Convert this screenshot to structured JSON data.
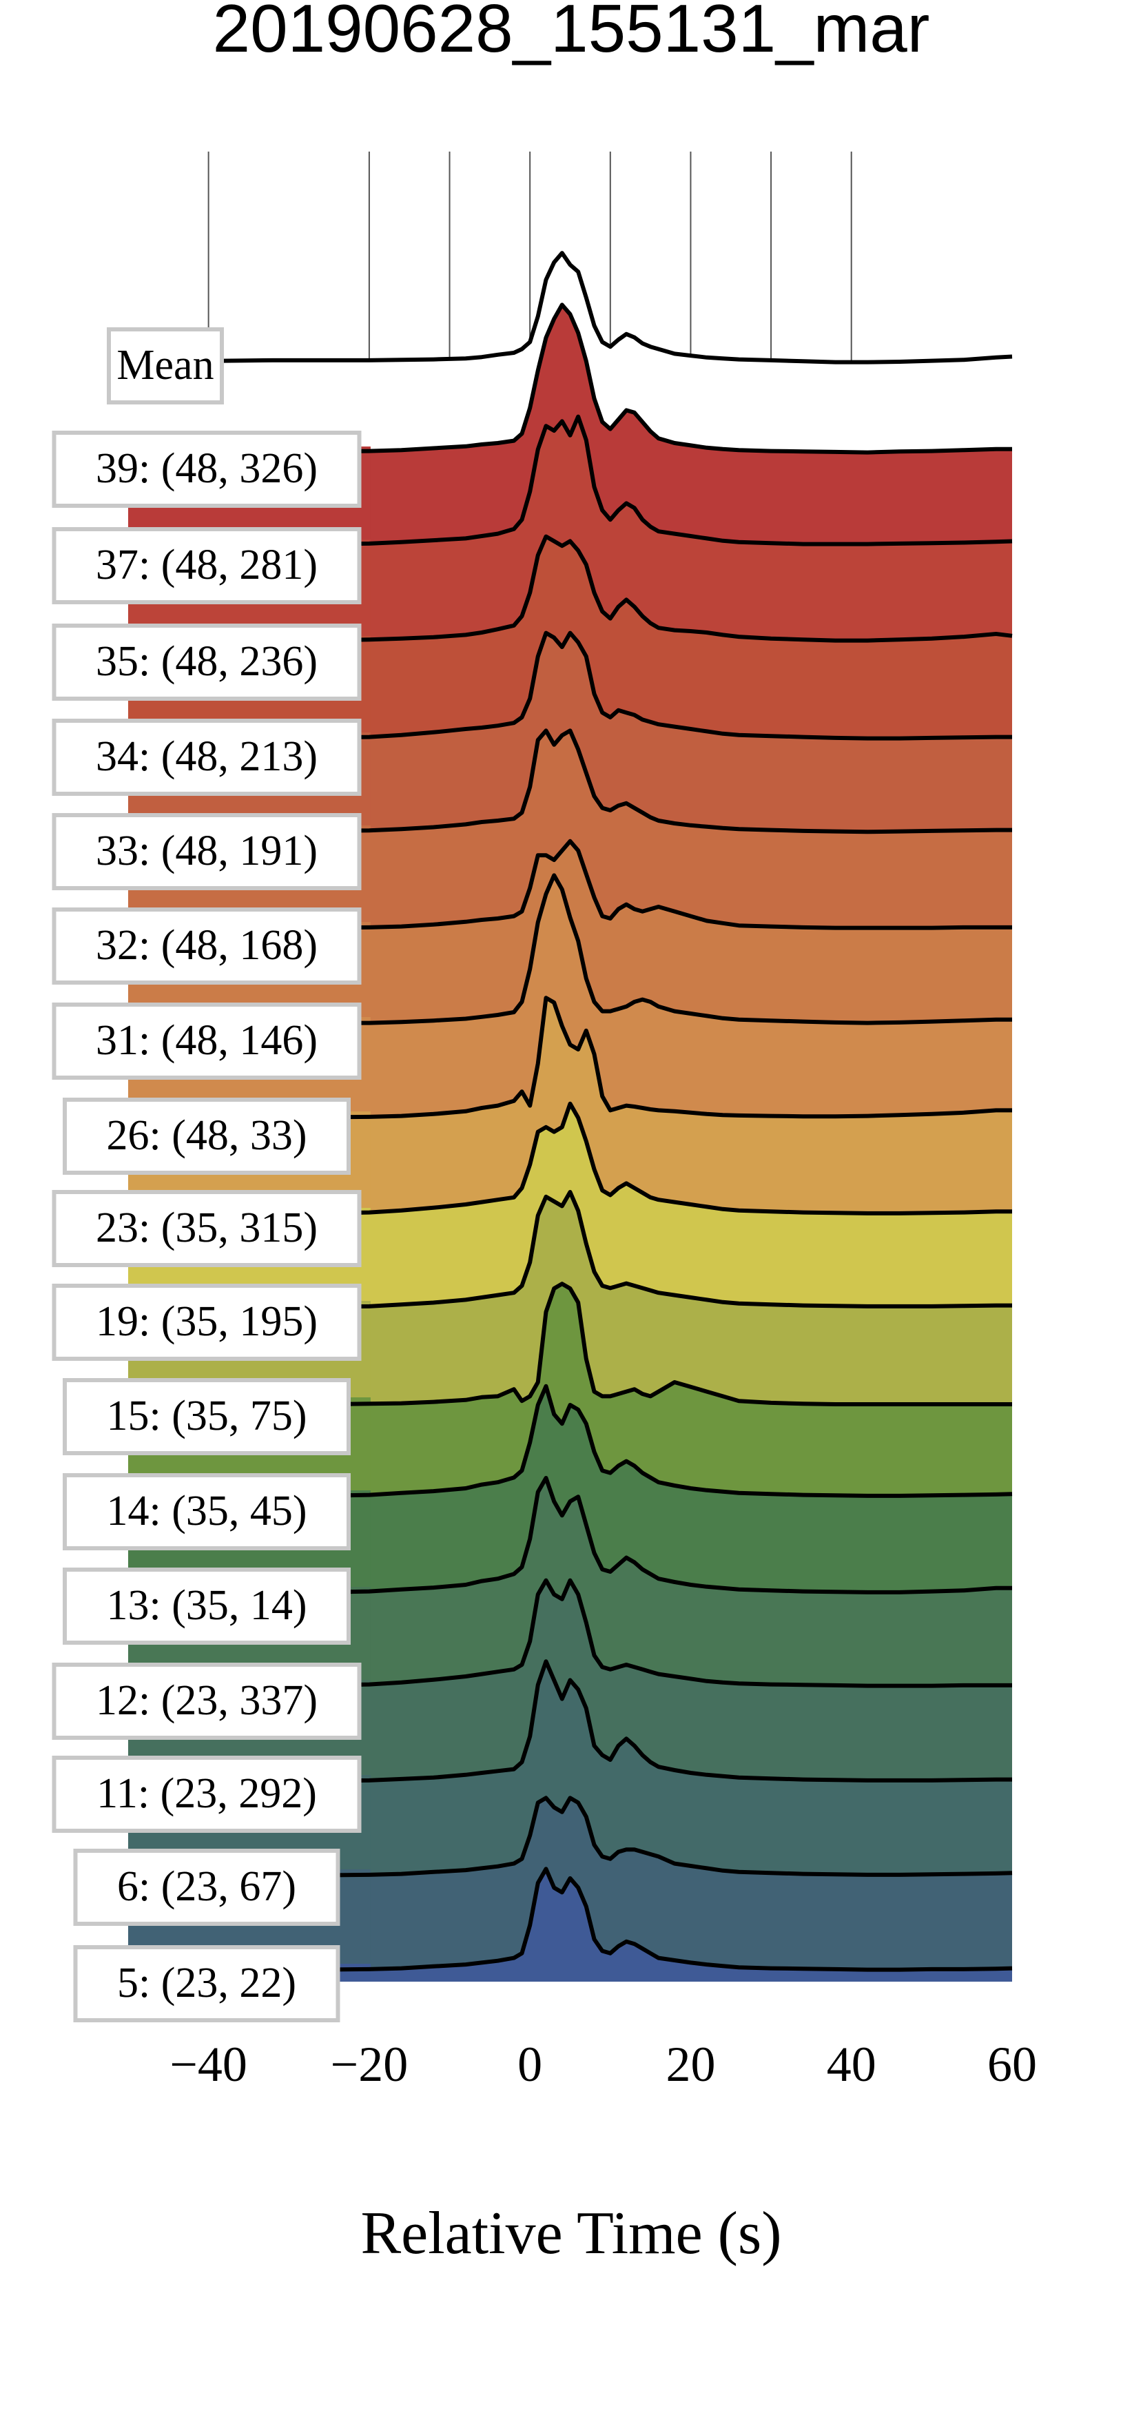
{
  "chart_data": {
    "type": "ridgeline",
    "title": "20190628_155131_mar",
    "xlabel": "Relative Time (s)",
    "ylabel": "",
    "xlim": [
      -50,
      60
    ],
    "x_ticks": [
      -40,
      -20,
      0,
      20,
      40,
      60
    ],
    "x_tick_labels": [
      "−40",
      "−20",
      "0",
      "20",
      "40",
      "60"
    ],
    "vertical_gridlines": [
      -40,
      -20,
      -10,
      0,
      10,
      20,
      30,
      40
    ],
    "grid": true,
    "x": [
      -50,
      -44,
      -38,
      -32,
      -26,
      -20,
      -16,
      -12,
      -8,
      -6,
      -4,
      -2,
      -1,
      0,
      1,
      2,
      3,
      4,
      5,
      6,
      7,
      8,
      9,
      10,
      11,
      12,
      13,
      14,
      15,
      16,
      18,
      20,
      22,
      24,
      26,
      30,
      34,
      38,
      42,
      46,
      50,
      54,
      58,
      60
    ],
    "mean": {
      "label": "Mean",
      "values": [
        0.05,
        0.05,
        0.05,
        0.06,
        0.06,
        0.06,
        0.07,
        0.08,
        0.1,
        0.13,
        0.18,
        0.22,
        0.3,
        0.45,
        1.0,
        1.78,
        2.15,
        2.35,
        2.1,
        1.95,
        1.4,
        0.8,
        0.45,
        0.35,
        0.5,
        0.62,
        0.55,
        0.42,
        0.35,
        0.3,
        0.2,
        0.16,
        0.12,
        0.1,
        0.08,
        0.06,
        0.04,
        0.02,
        0.02,
        0.03,
        0.05,
        0.07,
        0.12,
        0.14
      ]
    },
    "series": [
      {
        "name": "39: (48, 326)",
        "color": "#b93b39",
        "values": [
          0.05,
          0.05,
          0.06,
          0.06,
          0.07,
          0.08,
          0.1,
          0.14,
          0.18,
          0.22,
          0.25,
          0.3,
          0.45,
          1.0,
          1.8,
          2.5,
          2.9,
          3.2,
          3.0,
          2.6,
          2.0,
          1.2,
          0.7,
          0.55,
          0.75,
          0.95,
          0.9,
          0.7,
          0.5,
          0.35,
          0.25,
          0.2,
          0.15,
          0.12,
          0.1,
          0.08,
          0.07,
          0.06,
          0.05,
          0.07,
          0.08,
          0.1,
          0.12,
          0.12
        ]
      },
      {
        "name": "37: (48, 281)",
        "color": "#bc4439",
        "values": [
          0.05,
          0.05,
          0.06,
          0.06,
          0.08,
          0.09,
          0.12,
          0.16,
          0.2,
          0.25,
          0.3,
          0.4,
          0.6,
          1.2,
          2.1,
          2.6,
          2.5,
          2.7,
          2.4,
          2.8,
          2.3,
          1.3,
          0.8,
          0.6,
          0.8,
          0.95,
          0.85,
          0.6,
          0.45,
          0.35,
          0.3,
          0.25,
          0.2,
          0.15,
          0.12,
          0.1,
          0.08,
          0.08,
          0.08,
          0.09,
          0.1,
          0.11,
          0.13,
          0.14
        ]
      },
      {
        "name": "35: (48, 236)",
        "color": "#be5039",
        "values": [
          0.05,
          0.05,
          0.06,
          0.06,
          0.08,
          0.1,
          0.12,
          0.15,
          0.2,
          0.25,
          0.32,
          0.4,
          0.6,
          1.1,
          1.9,
          2.3,
          2.2,
          2.1,
          2.2,
          2.0,
          1.7,
          1.1,
          0.7,
          0.55,
          0.8,
          0.95,
          0.8,
          0.6,
          0.45,
          0.35,
          0.3,
          0.28,
          0.25,
          0.2,
          0.16,
          0.12,
          0.1,
          0.08,
          0.08,
          0.1,
          0.12,
          0.16,
          0.22,
          0.18
        ]
      },
      {
        "name": "34: (48, 213)",
        "color": "#c15f40",
        "values": [
          0.04,
          0.05,
          0.05,
          0.06,
          0.07,
          0.08,
          0.12,
          0.18,
          0.25,
          0.28,
          0.32,
          0.38,
          0.5,
          0.9,
          1.8,
          2.3,
          2.2,
          2.0,
          2.3,
          2.1,
          1.8,
          1.0,
          0.6,
          0.5,
          0.65,
          0.6,
          0.55,
          0.45,
          0.4,
          0.35,
          0.3,
          0.25,
          0.2,
          0.15,
          0.12,
          0.1,
          0.08,
          0.06,
          0.05,
          0.05,
          0.06,
          0.07,
          0.08,
          0.08
        ]
      },
      {
        "name": "33: (48, 191)",
        "color": "#c66d44",
        "values": [
          0.04,
          0.04,
          0.05,
          0.05,
          0.06,
          0.07,
          0.1,
          0.14,
          0.2,
          0.25,
          0.28,
          0.32,
          0.45,
          1.0,
          2.0,
          2.2,
          1.9,
          2.1,
          2.2,
          1.8,
          1.3,
          0.8,
          0.55,
          0.5,
          0.6,
          0.65,
          0.55,
          0.45,
          0.35,
          0.28,
          0.22,
          0.18,
          0.15,
          0.12,
          0.1,
          0.08,
          0.06,
          0.05,
          0.04,
          0.05,
          0.06,
          0.07,
          0.08,
          0.08
        ]
      },
      {
        "name": "32: (48, 168)",
        "color": "#cb7c48",
        "values": [
          0.04,
          0.04,
          0.04,
          0.05,
          0.05,
          0.06,
          0.08,
          0.12,
          0.18,
          0.22,
          0.25,
          0.3,
          0.4,
          0.9,
          1.6,
          1.6,
          1.5,
          1.7,
          1.9,
          1.7,
          1.2,
          0.7,
          0.3,
          0.25,
          0.45,
          0.55,
          0.45,
          0.4,
          0.45,
          0.5,
          0.4,
          0.3,
          0.2,
          0.15,
          0.1,
          0.08,
          0.06,
          0.05,
          0.05,
          0.05,
          0.05,
          0.06,
          0.06,
          0.06
        ]
      },
      {
        "name": "31: (48, 146)",
        "color": "#d08a4d",
        "values": [
          0.04,
          0.04,
          0.04,
          0.05,
          0.05,
          0.05,
          0.07,
          0.1,
          0.14,
          0.18,
          0.22,
          0.28,
          0.5,
          1.2,
          2.2,
          2.8,
          3.2,
          2.9,
          2.3,
          1.8,
          1.0,
          0.5,
          0.3,
          0.3,
          0.35,
          0.4,
          0.5,
          0.55,
          0.5,
          0.4,
          0.3,
          0.25,
          0.2,
          0.15,
          0.12,
          0.1,
          0.08,
          0.06,
          0.05,
          0.06,
          0.08,
          0.1,
          0.12,
          0.12
        ]
      },
      {
        "name": "26: (48, 33)",
        "color": "#d4a04f",
        "values": [
          0.03,
          0.03,
          0.04,
          0.04,
          0.05,
          0.06,
          0.08,
          0.12,
          0.18,
          0.25,
          0.3,
          0.4,
          0.6,
          0.3,
          1.2,
          2.6,
          2.5,
          2.0,
          1.6,
          1.5,
          1.9,
          1.4,
          0.5,
          0.2,
          0.25,
          0.3,
          0.28,
          0.25,
          0.22,
          0.2,
          0.18,
          0.15,
          0.12,
          0.1,
          0.09,
          0.08,
          0.07,
          0.07,
          0.08,
          0.1,
          0.12,
          0.15,
          0.2,
          0.2
        ]
      },
      {
        "name": "23: (35, 315)",
        "color": "#d0c64e",
        "values": [
          0.04,
          0.04,
          0.05,
          0.05,
          0.06,
          0.08,
          0.12,
          0.18,
          0.25,
          0.3,
          0.35,
          0.4,
          0.6,
          1.1,
          1.8,
          1.9,
          1.8,
          1.9,
          2.4,
          2.1,
          1.6,
          1.0,
          0.55,
          0.45,
          0.6,
          0.7,
          0.6,
          0.5,
          0.4,
          0.35,
          0.3,
          0.25,
          0.2,
          0.15,
          0.12,
          0.1,
          0.08,
          0.07,
          0.06,
          0.06,
          0.07,
          0.08,
          0.1,
          0.1
        ]
      },
      {
        "name": "19: (35, 195)",
        "color": "#acb049",
        "values": [
          0.04,
          0.04,
          0.04,
          0.05,
          0.05,
          0.06,
          0.1,
          0.14,
          0.2,
          0.25,
          0.3,
          0.35,
          0.5,
          1.0,
          2.0,
          2.4,
          2.3,
          2.2,
          2.5,
          2.1,
          1.4,
          0.8,
          0.5,
          0.45,
          0.5,
          0.55,
          0.5,
          0.45,
          0.4,
          0.35,
          0.3,
          0.25,
          0.2,
          0.15,
          0.12,
          0.1,
          0.08,
          0.07,
          0.06,
          0.06,
          0.06,
          0.07,
          0.08,
          0.08
        ]
      },
      {
        "name": "15: (35, 75)",
        "color": "#6e963f",
        "values": [
          0.02,
          0.02,
          0.02,
          0.03,
          0.03,
          0.04,
          0.05,
          0.08,
          0.12,
          0.18,
          0.2,
          0.35,
          0.1,
          0.2,
          0.5,
          2.0,
          2.5,
          2.6,
          2.5,
          2.2,
          1.0,
          0.3,
          0.2,
          0.2,
          0.25,
          0.3,
          0.35,
          0.25,
          0.2,
          0.3,
          0.5,
          0.4,
          0.3,
          0.2,
          0.1,
          0.06,
          0.04,
          0.03,
          0.03,
          0.03,
          0.03,
          0.03,
          0.03,
          0.03
        ]
      },
      {
        "name": "14: (35, 45)",
        "color": "#4b7e4b",
        "values": [
          0.04,
          0.04,
          0.05,
          0.05,
          0.06,
          0.08,
          0.12,
          0.16,
          0.22,
          0.3,
          0.35,
          0.45,
          0.6,
          1.2,
          2.0,
          2.4,
          1.8,
          1.6,
          2.0,
          1.9,
          1.6,
          1.0,
          0.6,
          0.55,
          0.7,
          0.8,
          0.7,
          0.55,
          0.45,
          0.35,
          0.28,
          0.22,
          0.18,
          0.15,
          0.12,
          0.1,
          0.08,
          0.07,
          0.06,
          0.06,
          0.07,
          0.08,
          0.09,
          0.1
        ]
      },
      {
        "name": "13: (35, 14)",
        "color": "#497755",
        "values": [
          0.04,
          0.04,
          0.05,
          0.05,
          0.06,
          0.08,
          0.12,
          0.16,
          0.22,
          0.3,
          0.35,
          0.45,
          0.6,
          1.2,
          2.2,
          2.5,
          2.0,
          1.7,
          2.0,
          2.1,
          1.5,
          0.9,
          0.55,
          0.5,
          0.65,
          0.8,
          0.7,
          0.55,
          0.45,
          0.35,
          0.28,
          0.22,
          0.18,
          0.15,
          0.12,
          0.1,
          0.08,
          0.07,
          0.06,
          0.06,
          0.08,
          0.1,
          0.15,
          0.15
        ]
      },
      {
        "name": "12: (23, 337)",
        "color": "#46705e",
        "values": [
          0.04,
          0.04,
          0.05,
          0.05,
          0.06,
          0.08,
          0.12,
          0.18,
          0.25,
          0.3,
          0.35,
          0.4,
          0.5,
          1.0,
          2.0,
          2.3,
          2.0,
          1.9,
          2.3,
          2.0,
          1.4,
          0.7,
          0.45,
          0.4,
          0.45,
          0.5,
          0.45,
          0.4,
          0.35,
          0.3,
          0.25,
          0.2,
          0.15,
          0.12,
          0.1,
          0.08,
          0.07,
          0.06,
          0.05,
          0.05,
          0.05,
          0.06,
          0.06,
          0.06
        ]
      },
      {
        "name": "11: (23, 292)",
        "color": "#436a69",
        "values": [
          0.04,
          0.04,
          0.04,
          0.05,
          0.05,
          0.06,
          0.09,
          0.12,
          0.18,
          0.22,
          0.26,
          0.3,
          0.45,
          1.0,
          2.1,
          2.6,
          2.2,
          1.8,
          2.2,
          2.0,
          1.6,
          0.8,
          0.6,
          0.5,
          0.8,
          0.95,
          0.8,
          0.6,
          0.45,
          0.35,
          0.28,
          0.22,
          0.18,
          0.15,
          0.12,
          0.1,
          0.08,
          0.07,
          0.06,
          0.06,
          0.06,
          0.07,
          0.08,
          0.08
        ]
      },
      {
        "name": "6: (23, 67)",
        "color": "#416275",
        "values": [
          0.04,
          0.04,
          0.04,
          0.05,
          0.05,
          0.06,
          0.08,
          0.12,
          0.16,
          0.2,
          0.24,
          0.3,
          0.4,
          0.9,
          1.6,
          1.7,
          1.5,
          1.4,
          1.7,
          1.6,
          1.3,
          0.7,
          0.45,
          0.4,
          0.55,
          0.6,
          0.6,
          0.55,
          0.5,
          0.45,
          0.3,
          0.25,
          0.2,
          0.15,
          0.12,
          0.1,
          0.08,
          0.07,
          0.06,
          0.06,
          0.07,
          0.08,
          0.09,
          0.1
        ]
      },
      {
        "name": "5: (23, 22)",
        "color": "#3f5a96",
        "values": [
          0.04,
          0.04,
          0.04,
          0.05,
          0.05,
          0.06,
          0.08,
          0.12,
          0.16,
          0.2,
          0.24,
          0.3,
          0.4,
          1.0,
          1.9,
          2.2,
          1.8,
          1.7,
          2.0,
          1.8,
          1.4,
          0.7,
          0.45,
          0.4,
          0.55,
          0.65,
          0.6,
          0.5,
          0.4,
          0.3,
          0.25,
          0.2,
          0.16,
          0.13,
          0.1,
          0.08,
          0.07,
          0.06,
          0.05,
          0.05,
          0.06,
          0.06,
          0.07,
          0.08
        ]
      }
    ]
  }
}
